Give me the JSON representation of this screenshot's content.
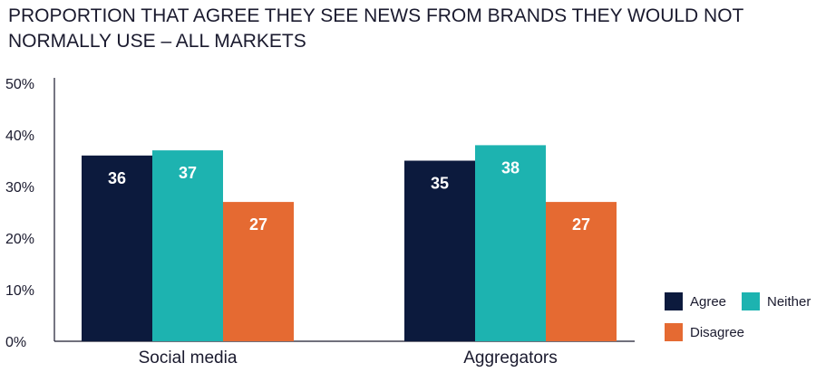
{
  "chart_data": {
    "type": "bar",
    "title": "PROPORTION THAT AGREE THEY SEE NEWS FROM BRANDS THEY WOULD NOT NORMALLY USE – ALL MARKETS",
    "categories": [
      "Social media",
      "Aggregators"
    ],
    "series": [
      {
        "name": "Agree",
        "values": [
          36,
          35
        ],
        "color": "#0c1a3d"
      },
      {
        "name": "Neither",
        "values": [
          37,
          38
        ],
        "color": "#1db3b0"
      },
      {
        "name": "Disagree",
        "values": [
          27,
          27
        ],
        "color": "#e56a32"
      }
    ],
    "ylim": [
      0,
      50
    ],
    "yticks": [
      "0%",
      "10%",
      "20%",
      "30%",
      "40%",
      "50%"
    ],
    "ytick_values": [
      0,
      10,
      20,
      30,
      40,
      50
    ],
    "grid": false,
    "legend_position": "bottom-right",
    "data_labels": true
  }
}
